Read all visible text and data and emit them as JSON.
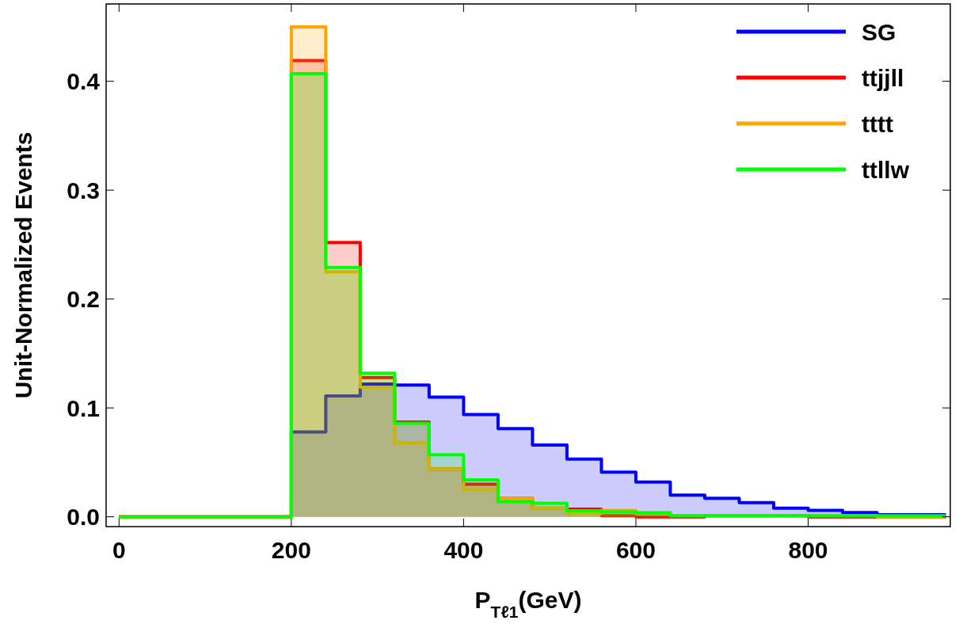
{
  "chart_data": {
    "type": "histogram",
    "xlabel": "P$_{Tℓ1}$(GeV)",
    "ylabel": "Unit-Normalized Events",
    "bins": [
      0,
      40,
      80,
      120,
      160,
      200,
      240,
      280,
      320,
      360,
      400,
      440,
      480,
      520,
      560,
      600,
      640,
      680,
      720,
      760,
      800,
      840,
      880,
      920,
      960
    ],
    "series": [
      {
        "name": "SG",
        "color": "#0000ff",
        "values": [
          0,
          0,
          0,
          0,
          0,
          0.078,
          0.111,
          0.122,
          0.121,
          0.11,
          0.094,
          0.081,
          0.066,
          0.053,
          0.041,
          0.032,
          0.02,
          0.017,
          0.013,
          0.008,
          0.006,
          0.004,
          0.002,
          0.002
        ]
      },
      {
        "name": "ttjjll",
        "color": "#ff0000",
        "values": [
          0,
          0,
          0,
          0,
          0,
          0.419,
          0.252,
          0.128,
          0.087,
          0.044,
          0.03,
          0.017,
          0.008,
          0.007,
          0.001,
          0,
          0,
          0.001,
          0.001,
          0.001,
          0,
          0,
          0,
          0
        ]
      },
      {
        "name": "tttt",
        "color": "#ffa500",
        "values": [
          0,
          0,
          0,
          0,
          0,
          0.45,
          0.225,
          0.119,
          0.068,
          0.044,
          0.025,
          0.017,
          0.008,
          0.003,
          0.006,
          0.003,
          0.001,
          0.001,
          0.001,
          0.001,
          0.001,
          0.001,
          0,
          0
        ]
      },
      {
        "name": "ttllw",
        "color": "#00ff00",
        "values": [
          0,
          0,
          0,
          0,
          0,
          0.407,
          0.229,
          0.132,
          0.086,
          0.057,
          0.034,
          0.014,
          0.0125,
          0.0055,
          0.0044,
          0.0037,
          0.001,
          0.001,
          0.001,
          0.001,
          0.001,
          0.001,
          0.001,
          0.001
        ]
      }
    ],
    "xlim": [
      -15,
      965
    ],
    "ylim": [
      -0.009,
      0.471
    ],
    "xticks": [
      0,
      200,
      400,
      600,
      800
    ],
    "yticks": [
      {
        "value": 0,
        "label": "0.0"
      },
      {
        "value": 0.1,
        "label": "0.1"
      },
      {
        "value": 0.2,
        "label": "0.2"
      },
      {
        "value": 0.3,
        "label": "0.3"
      },
      {
        "value": 0.4,
        "label": "0.4"
      }
    ],
    "legend": "top right",
    "grid": false
  }
}
